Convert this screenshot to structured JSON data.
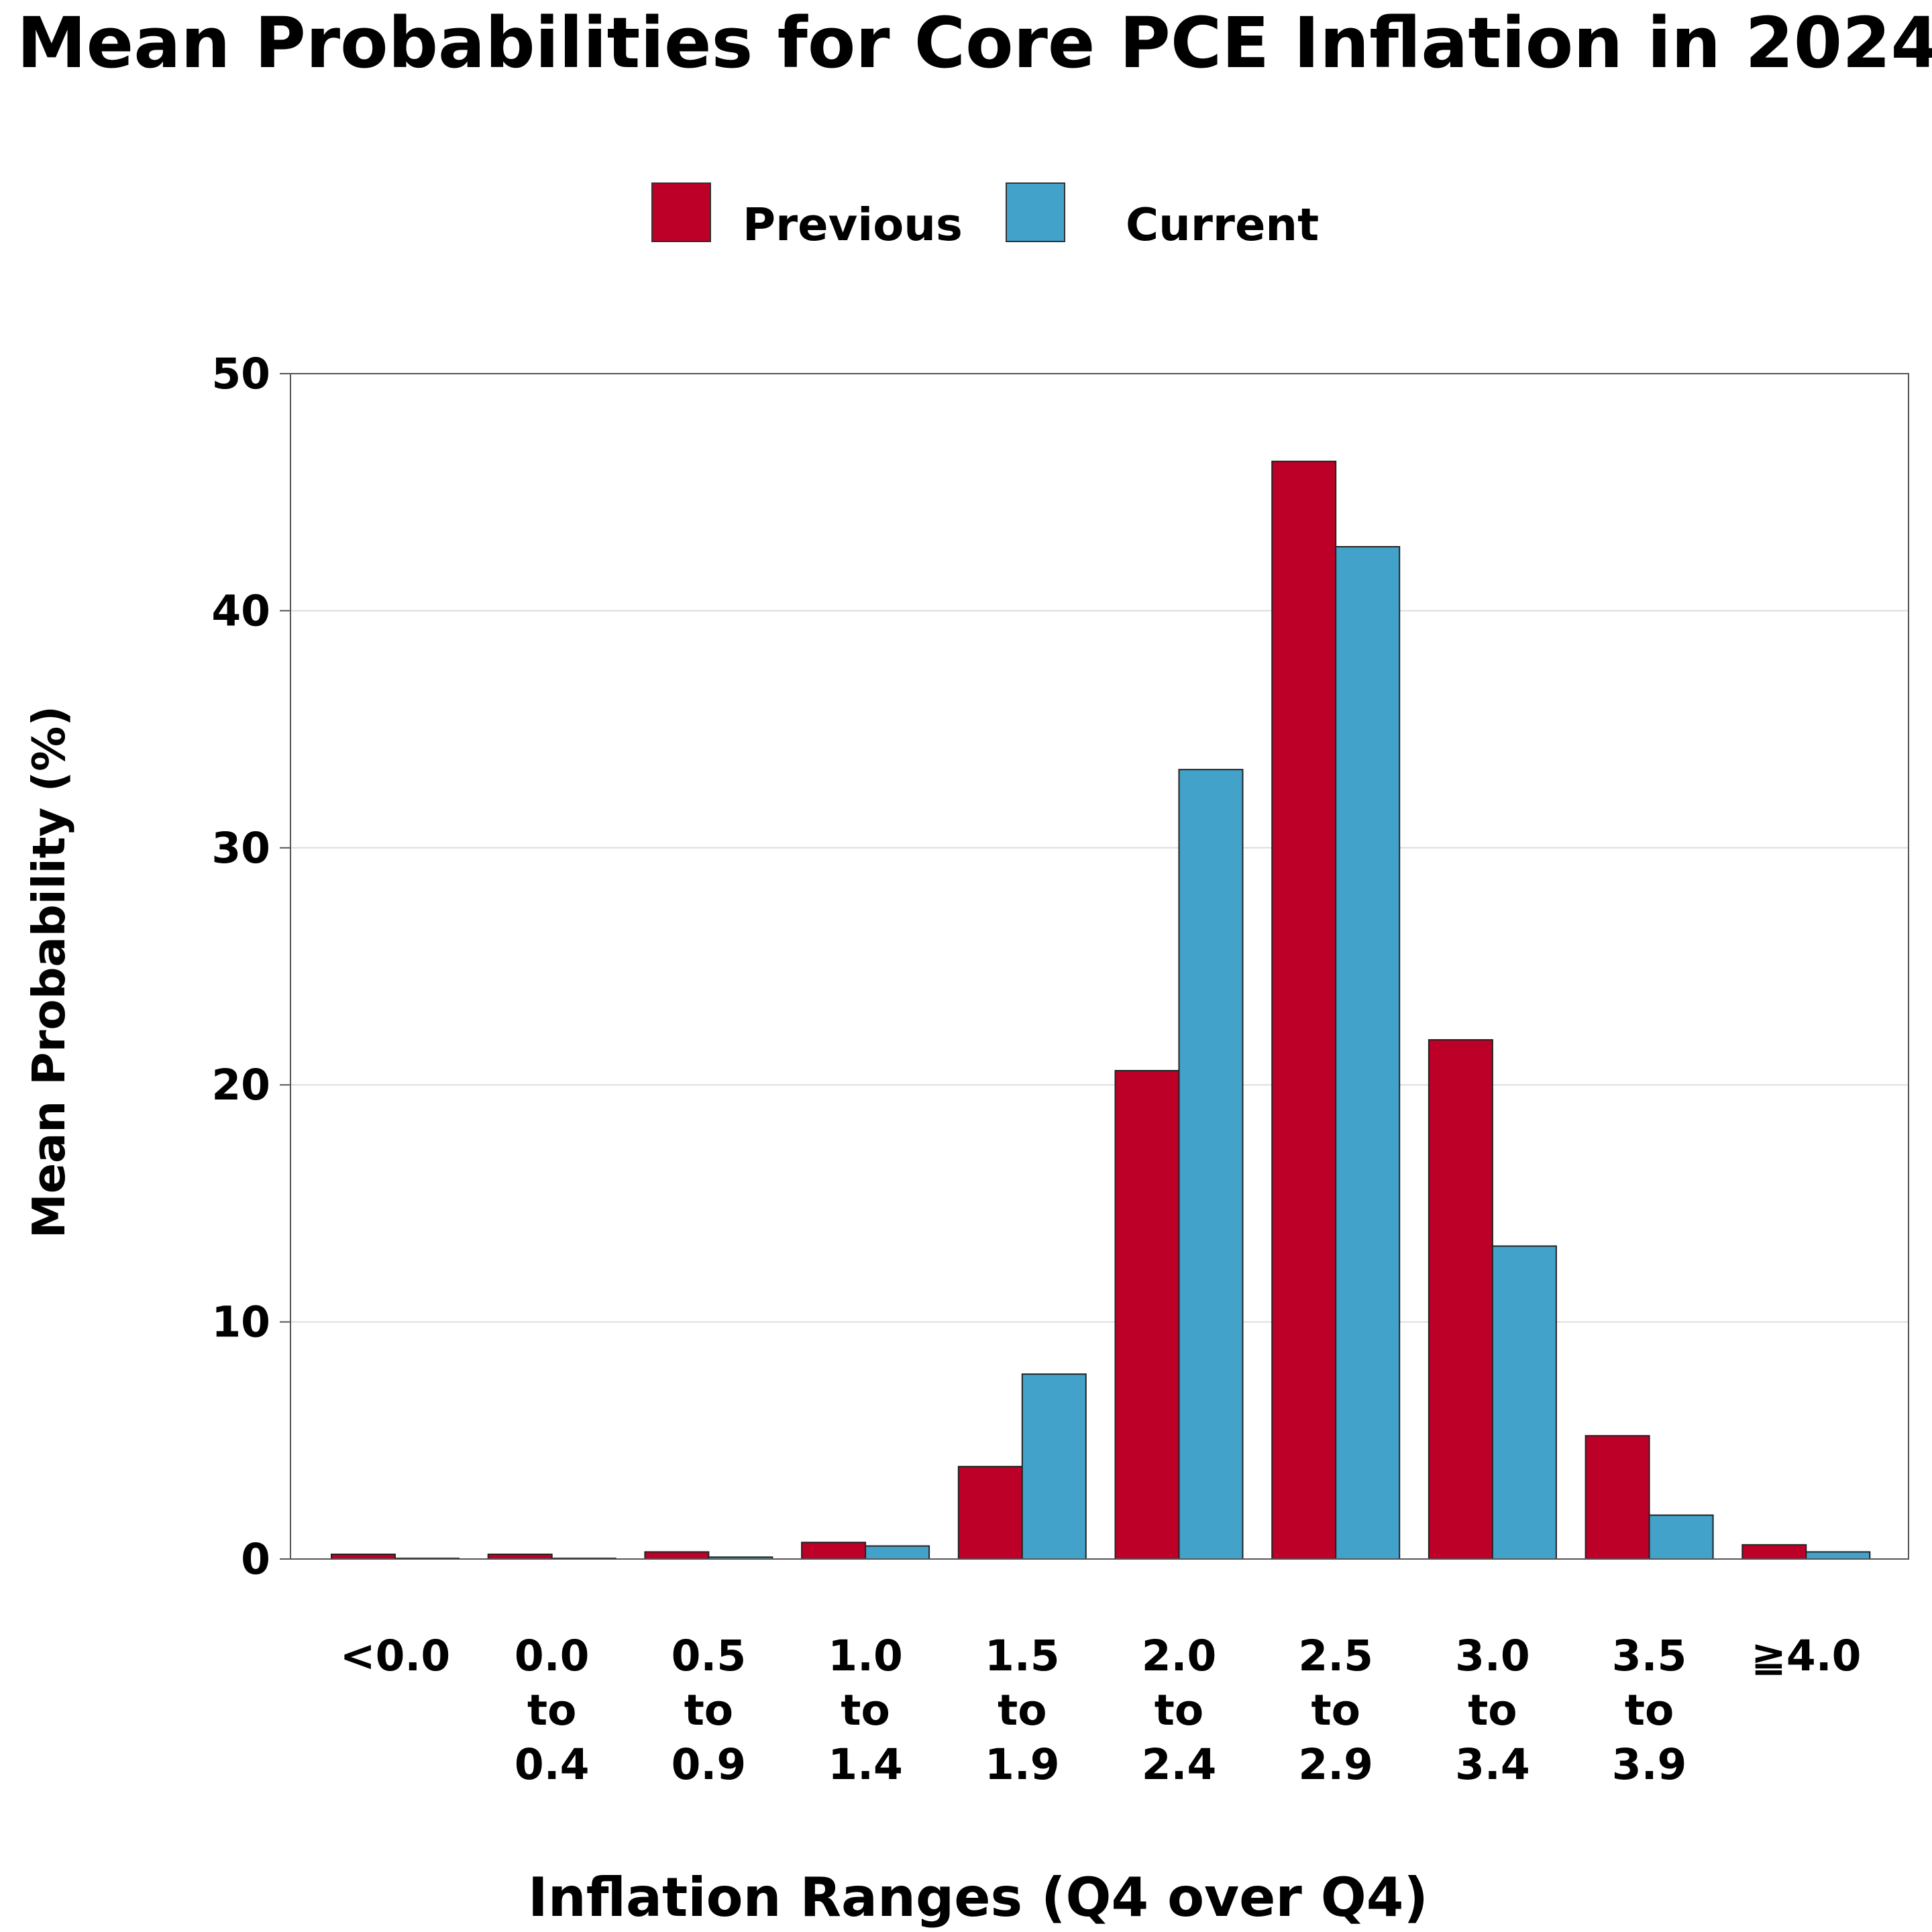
{
  "chart_data": {
    "type": "bar",
    "title": "Mean Probabilities for Core PCE Inflation in 2024",
    "xlabel": "Inflation Ranges (Q4 over Q4)",
    "ylabel": "Mean Probability (%)",
    "ylim": [
      0,
      50
    ],
    "yticks": [
      "0",
      "10",
      "20",
      "30",
      "40",
      "50"
    ],
    "grid": "horizontal",
    "legend_position": "top-center",
    "categories": [
      [
        "<0.0"
      ],
      [
        "0.0",
        "to",
        "0.4"
      ],
      [
        "0.5",
        "to",
        "0.9"
      ],
      [
        "1.0",
        "to",
        "1.4"
      ],
      [
        "1.5",
        "to",
        "1.9"
      ],
      [
        "2.0",
        "to",
        "2.4"
      ],
      [
        "2.5",
        "to",
        "2.9"
      ],
      [
        "3.0",
        "to",
        "3.4"
      ],
      [
        "3.5",
        "to",
        "3.9"
      ],
      [
        "≧4.0"
      ]
    ],
    "series": [
      {
        "name": "Previous",
        "color": "#BC0028",
        "values": [
          0.2,
          0.2,
          0.3,
          0.7,
          3.9,
          20.6,
          46.3,
          21.9,
          5.2,
          0.6
        ]
      },
      {
        "name": "Current",
        "color": "#43A2CA",
        "values": [
          0.03,
          0.03,
          0.08,
          0.55,
          7.8,
          33.3,
          42.7,
          13.2,
          1.85,
          0.3
        ]
      }
    ]
  }
}
